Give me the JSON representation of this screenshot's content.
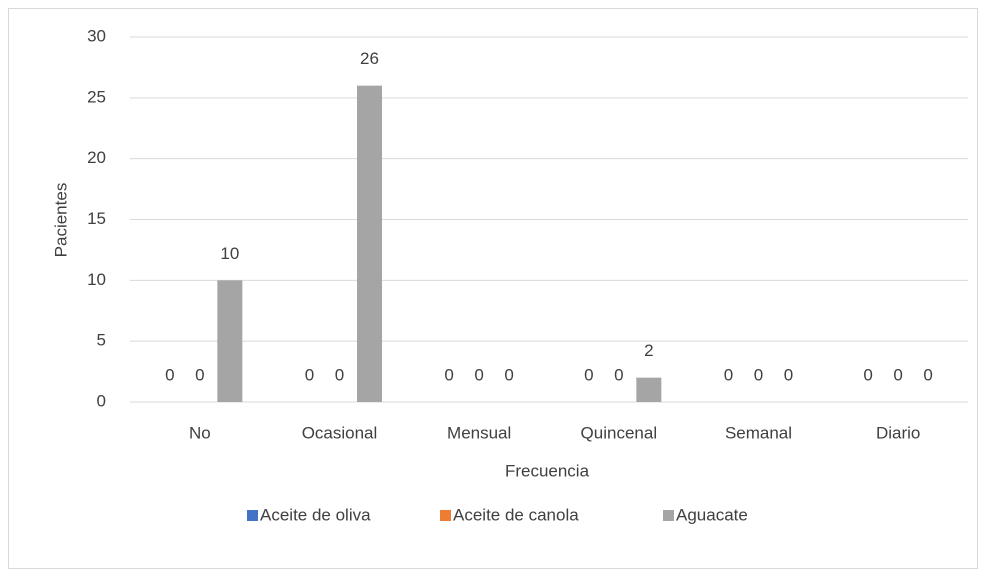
{
  "chart_data": {
    "type": "bar",
    "categories": [
      "No",
      "Ocasional",
      "Mensual",
      "Quincenal",
      "Semanal",
      "Diario"
    ],
    "series": [
      {
        "name": "Aceite de oliva",
        "color": "#4472c4",
        "values": [
          0,
          0,
          0,
          0,
          0,
          0
        ]
      },
      {
        "name": "Aceite de canola",
        "color": "#ed7d31",
        "values": [
          0,
          0,
          0,
          0,
          0,
          0
        ]
      },
      {
        "name": "Aguacate",
        "color": "#a5a5a5",
        "values": [
          10,
          26,
          0,
          2,
          0,
          0
        ]
      }
    ],
    "xlabel": "Frecuencia",
    "ylabel": "Pacientes",
    "ylim": [
      0,
      30
    ],
    "yticks": [
      0,
      5,
      10,
      15,
      20,
      25,
      30
    ],
    "grid": true,
    "legend": "bottom"
  }
}
